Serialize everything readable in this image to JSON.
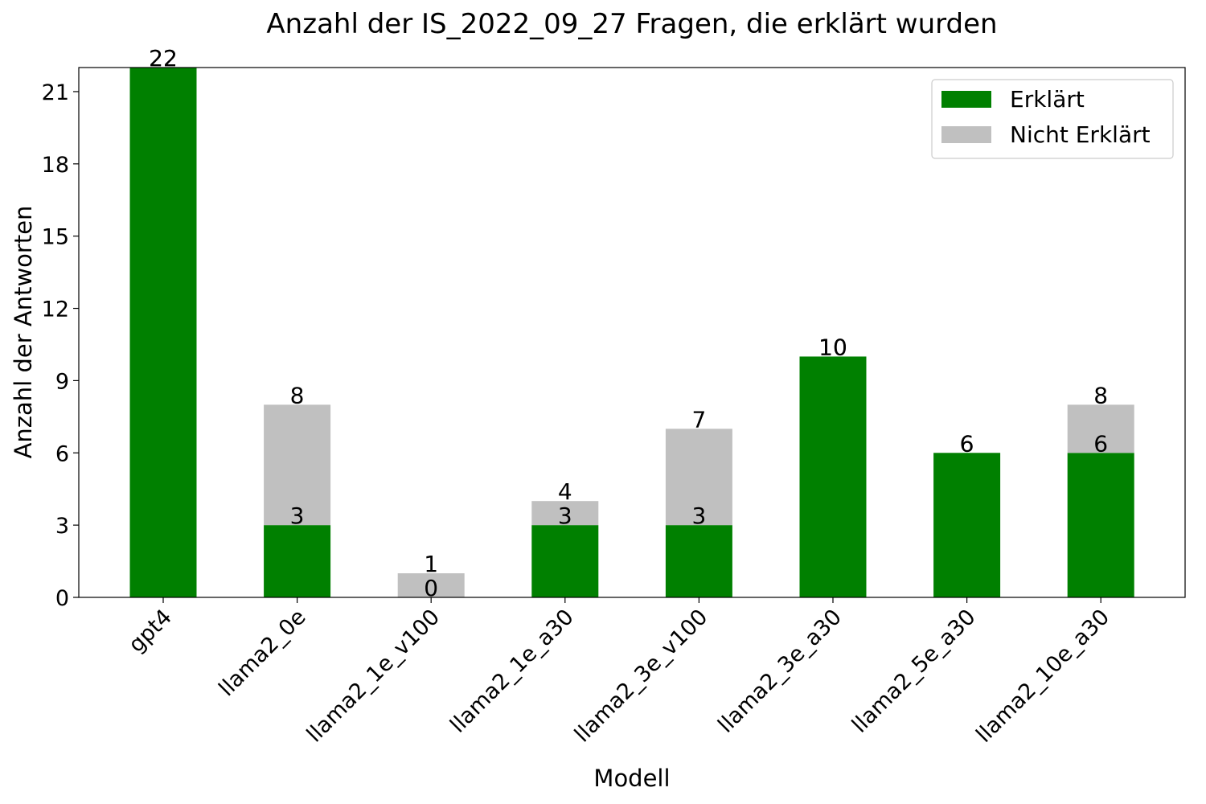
{
  "chart_data": {
    "type": "bar",
    "stacked": true,
    "title": "Anzahl der IS_2022_09_27 Fragen, die erklärt wurden",
    "xlabel": "Modell",
    "ylabel": "Anzahl der Antworten",
    "categories": [
      "gpt4",
      "llama2_0e",
      "llama2_1e_v100",
      "llama2_1e_a30",
      "llama2_3e_v100",
      "llama2_3e_a30",
      "llama2_5e_a30",
      "llama2_10e_a30"
    ],
    "series": [
      {
        "name": "Erklärt",
        "color": "#008000",
        "values": [
          22,
          3,
          0,
          3,
          3,
          10,
          6,
          6
        ]
      },
      {
        "name": "Nicht Erklärt",
        "color": "#c0c0c0",
        "values": [
          0,
          5,
          1,
          1,
          4,
          0,
          0,
          2
        ]
      }
    ],
    "totals": [
      22,
      8,
      1,
      4,
      7,
      10,
      6,
      8
    ],
    "ylim": [
      0,
      22
    ],
    "yticks": [
      0,
      3,
      6,
      9,
      12,
      15,
      18,
      21
    ],
    "legend_position": "top-right",
    "grid": false
  }
}
